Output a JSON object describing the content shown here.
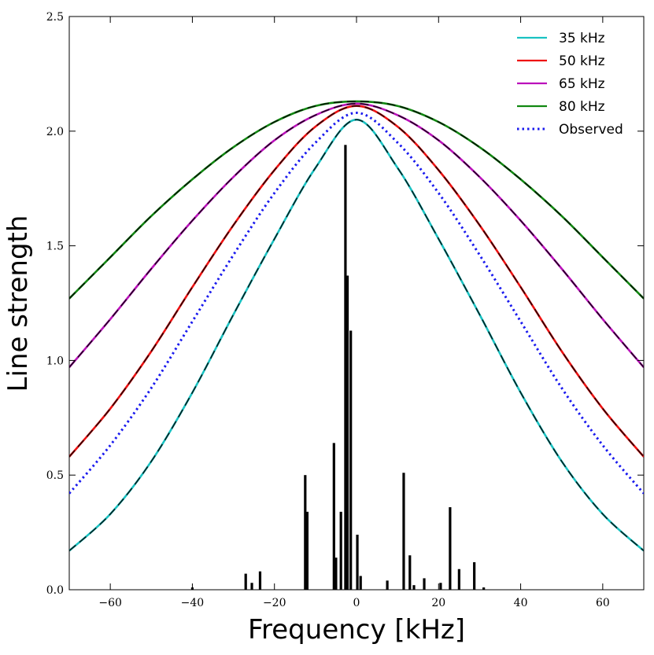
{
  "chart_data": {
    "type": "line",
    "xlabel": "Frequency [kHz]",
    "ylabel": "Line strength",
    "xlim": [
      -70,
      70
    ],
    "ylim": [
      0,
      2.5
    ],
    "x_ticks": [
      -60,
      -40,
      -20,
      0,
      20,
      40,
      60
    ],
    "y_ticks": [
      0.0,
      0.5,
      1.0,
      1.5,
      2.0,
      2.5
    ],
    "x_tick_labels": [
      "−60",
      "−40",
      "−20",
      "0",
      "20",
      "40",
      "60"
    ],
    "y_tick_labels": [
      "0.0",
      "0.5",
      "1.0",
      "1.5",
      "2.0",
      "2.5"
    ],
    "legend_position": "top-right",
    "series": [
      {
        "name": "35 kHz",
        "color": "#19c2c2",
        "style": "solid",
        "x": [
          -70,
          -60,
          -50,
          -40,
          -30,
          -20,
          -10,
          0,
          10,
          20,
          30,
          40,
          50,
          60,
          70
        ],
        "values": [
          0.17,
          0.33,
          0.56,
          0.86,
          1.2,
          1.53,
          1.84,
          2.05,
          1.84,
          1.53,
          1.2,
          0.86,
          0.56,
          0.33,
          0.17
        ]
      },
      {
        "name": "50 kHz",
        "color": "#ee1111",
        "style": "solid",
        "x": [
          -70,
          -60,
          -50,
          -40,
          -30,
          -20,
          -10,
          0,
          10,
          20,
          30,
          40,
          50,
          60,
          70
        ],
        "values": [
          0.58,
          0.79,
          1.04,
          1.32,
          1.59,
          1.83,
          2.02,
          2.11,
          2.02,
          1.83,
          1.59,
          1.32,
          1.04,
          0.79,
          0.58
        ]
      },
      {
        "name": "65 kHz",
        "color": "#bb11bb",
        "style": "solid",
        "x": [
          -70,
          -60,
          -50,
          -40,
          -30,
          -20,
          -10,
          0,
          10,
          20,
          30,
          40,
          50,
          60,
          70
        ],
        "values": [
          0.97,
          1.18,
          1.4,
          1.61,
          1.8,
          1.96,
          2.07,
          2.12,
          2.07,
          1.96,
          1.8,
          1.61,
          1.4,
          1.18,
          0.97
        ]
      },
      {
        "name": "80 kHz",
        "color": "#118811",
        "style": "solid",
        "x": [
          -70,
          -60,
          -50,
          -40,
          -30,
          -20,
          -10,
          0,
          10,
          20,
          30,
          40,
          50,
          60,
          70
        ],
        "values": [
          1.27,
          1.45,
          1.63,
          1.79,
          1.93,
          2.04,
          2.11,
          2.13,
          2.11,
          2.04,
          1.93,
          1.79,
          1.63,
          1.45,
          1.27
        ]
      },
      {
        "name": "Observed",
        "color": "#1a1aee",
        "style": "dotted",
        "x": [
          -70,
          -60,
          -50,
          -40,
          -30,
          -20,
          -10,
          0,
          10,
          20,
          30,
          40,
          50,
          60,
          70
        ],
        "values": [
          0.42,
          0.63,
          0.88,
          1.17,
          1.46,
          1.73,
          1.95,
          2.08,
          1.95,
          1.73,
          1.46,
          1.17,
          0.88,
          0.63,
          0.42
        ]
      }
    ],
    "stick_spectrum": {
      "color": "#000000",
      "x": [
        -40,
        -27,
        -25.5,
        -23.5,
        -12.5,
        -12,
        -5.5,
        -5,
        -3.8,
        -2.7,
        -2.2,
        -1.4,
        0.2,
        1,
        7.5,
        11.5,
        13,
        14,
        16.5,
        20.5,
        22.8,
        25,
        28.7,
        31
      ],
      "values": [
        0.01,
        0.07,
        0.03,
        0.08,
        0.5,
        0.34,
        0.64,
        0.14,
        0.34,
        1.94,
        1.37,
        1.13,
        0.24,
        0.06,
        0.04,
        0.51,
        0.15,
        0.02,
        0.05,
        0.03,
        0.36,
        0.09,
        0.12,
        0.01
      ]
    }
  }
}
